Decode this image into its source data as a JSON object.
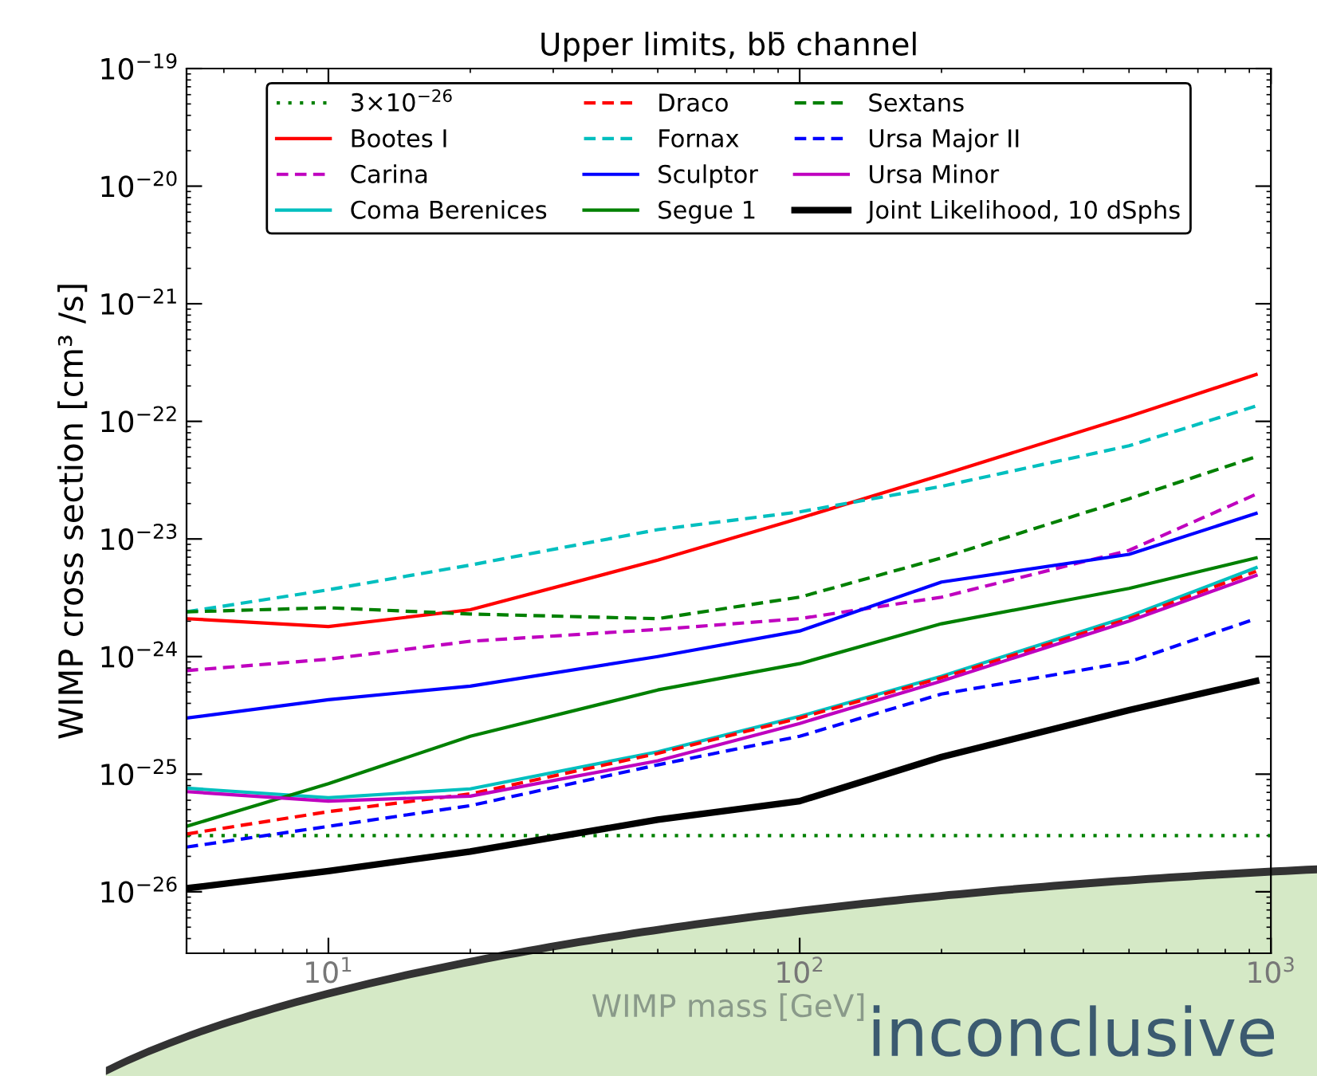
{
  "chart_data": {
    "type": "line",
    "title": "Upper limits, bb̄ channel",
    "xlabel": "WIMP mass [GeV]",
    "ylabel": "WIMP cross section [cm³ /s]",
    "log": "xy",
    "xlim": [
      5,
      1000
    ],
    "ylim": [
      3e-27,
      1e-19
    ],
    "xticks": [
      {
        "value": 10,
        "label": "10$^{1}$"
      },
      {
        "value": 100,
        "label": "10$^{2}$"
      },
      {
        "value": 1000,
        "label": "10$^{3}$"
      }
    ],
    "yticks": [
      {
        "value": 1e-26,
        "label": "10$^{−26}$"
      },
      {
        "value": 1e-25,
        "label": "10$^{−25}$"
      },
      {
        "value": 1e-24,
        "label": "10$^{−24}$"
      },
      {
        "value": 1e-23,
        "label": "10$^{−23}$"
      },
      {
        "value": 1e-22,
        "label": "10$^{−22}$"
      },
      {
        "value": 1e-21,
        "label": "10$^{−21}$"
      },
      {
        "value": 1e-20,
        "label": "10$^{−20}$"
      },
      {
        "value": 1e-19,
        "label": "10$^{−19}$"
      }
    ],
    "grid": false,
    "legend": "top",
    "marker": "none",
    "x": [
      5,
      10,
      20,
      50,
      100,
      200,
      500,
      930
    ],
    "series": [
      {
        "name": "3×10$^{−26}$",
        "color": "#008000",
        "line_style": "dotted",
        "x": [
          5,
          1000
        ],
        "values": [
          3e-26,
          3e-26
        ]
      },
      {
        "name": "Bootes I",
        "color": "#ff0000",
        "line_style": "solid",
        "values": [
          2.1e-24,
          1.8e-24,
          2.5e-24,
          6.6e-24,
          1.5e-23,
          3.5e-23,
          1.1e-22,
          2.5e-22
        ]
      },
      {
        "name": "Carina",
        "color": "#bf00bf",
        "line_style": "dashed",
        "values": [
          7.6e-25,
          9.5e-25,
          1.35e-24,
          1.7e-24,
          2.1e-24,
          3.2e-24,
          8e-24,
          2.4e-23
        ]
      },
      {
        "name": "Coma Berenices",
        "color": "#00bfbf",
        "line_style": "solid",
        "values": [
          7.6e-26,
          6.3e-26,
          7.5e-26,
          1.55e-25,
          3.1e-25,
          6.8e-25,
          2.2e-24,
          5.7e-24
        ]
      },
      {
        "name": "Draco",
        "color": "#ff0000",
        "line_style": "dashed",
        "values": [
          3.1e-26,
          4.8e-26,
          6.8e-26,
          1.5e-25,
          3e-25,
          6.6e-25,
          2.1e-24,
          5.3e-24
        ]
      },
      {
        "name": "Fornax",
        "color": "#00bfbf",
        "line_style": "dashed",
        "values": [
          2.4e-24,
          3.7e-24,
          6e-24,
          1.2e-23,
          1.7e-23,
          2.8e-23,
          6.2e-23,
          1.35e-22
        ]
      },
      {
        "name": "Sculptor",
        "color": "#0000ff",
        "line_style": "solid",
        "values": [
          3e-25,
          4.3e-25,
          5.6e-25,
          1e-24,
          1.65e-24,
          4.3e-24,
          7.4e-24,
          1.65e-23
        ]
      },
      {
        "name": "Segue 1",
        "color": "#008000",
        "line_style": "solid",
        "values": [
          3.6e-26,
          8.3e-26,
          2.1e-25,
          5.2e-25,
          8.7e-25,
          1.9e-24,
          3.8e-24,
          6.9e-24
        ]
      },
      {
        "name": "Sextans",
        "color": "#008000",
        "line_style": "dashed",
        "values": [
          2.4e-24,
          2.6e-24,
          2.3e-24,
          2.1e-24,
          3.2e-24,
          6.9e-24,
          2.2e-23,
          5e-23
        ]
      },
      {
        "name": "Ursa Major II",
        "color": "#0000ff",
        "line_style": "dashed",
        "values": [
          2.4e-26,
          3.6e-26,
          5.4e-26,
          1.2e-25,
          2.1e-25,
          4.8e-25,
          9e-25,
          2.1e-24
        ]
      },
      {
        "name": "Ursa Minor",
        "color": "#bf00bf",
        "line_style": "solid",
        "values": [
          7.1e-26,
          5.9e-26,
          6.5e-26,
          1.3e-25,
          2.7e-25,
          6.2e-25,
          2e-24,
          4.9e-24
        ]
      },
      {
        "name": "Joint Likelihood, 10 dSphs",
        "color": "#000000",
        "line_style": "solid",
        "values": [
          1.07e-26,
          1.5e-26,
          2.2e-26,
          4.1e-26,
          5.9e-26,
          1.4e-25,
          3.5e-25,
          6.2e-25
        ]
      }
    ],
    "annotations": [
      "inconclusive"
    ]
  }
}
